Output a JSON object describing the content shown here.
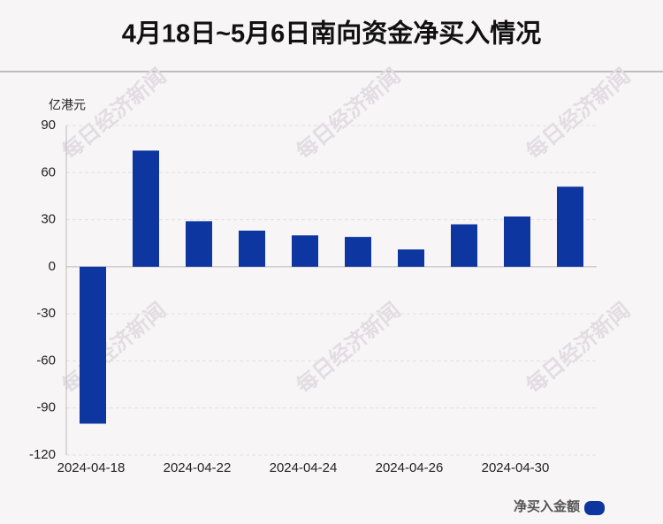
{
  "chart_data": {
    "type": "bar",
    "title": "4月18日~5月6日南向资金净买入情况",
    "y_label": "亿港元",
    "categories": [
      "2024-04-18",
      null,
      "2024-04-22",
      null,
      "2024-04-24",
      null,
      "2024-04-26",
      null,
      "2024-04-30",
      null
    ],
    "series": [
      {
        "name": "净买入金额",
        "color": "#0d36a1",
        "values": [
          -100,
          74,
          29,
          23,
          20,
          19,
          11,
          27,
          32,
          51
        ]
      }
    ],
    "ylim": [
      -120,
      90
    ],
    "yticks": [
      -120,
      -90,
      -60,
      -30,
      0,
      30,
      60,
      90
    ],
    "grid": true,
    "legend": "bottom-right",
    "watermark": "每日经济新闻"
  }
}
